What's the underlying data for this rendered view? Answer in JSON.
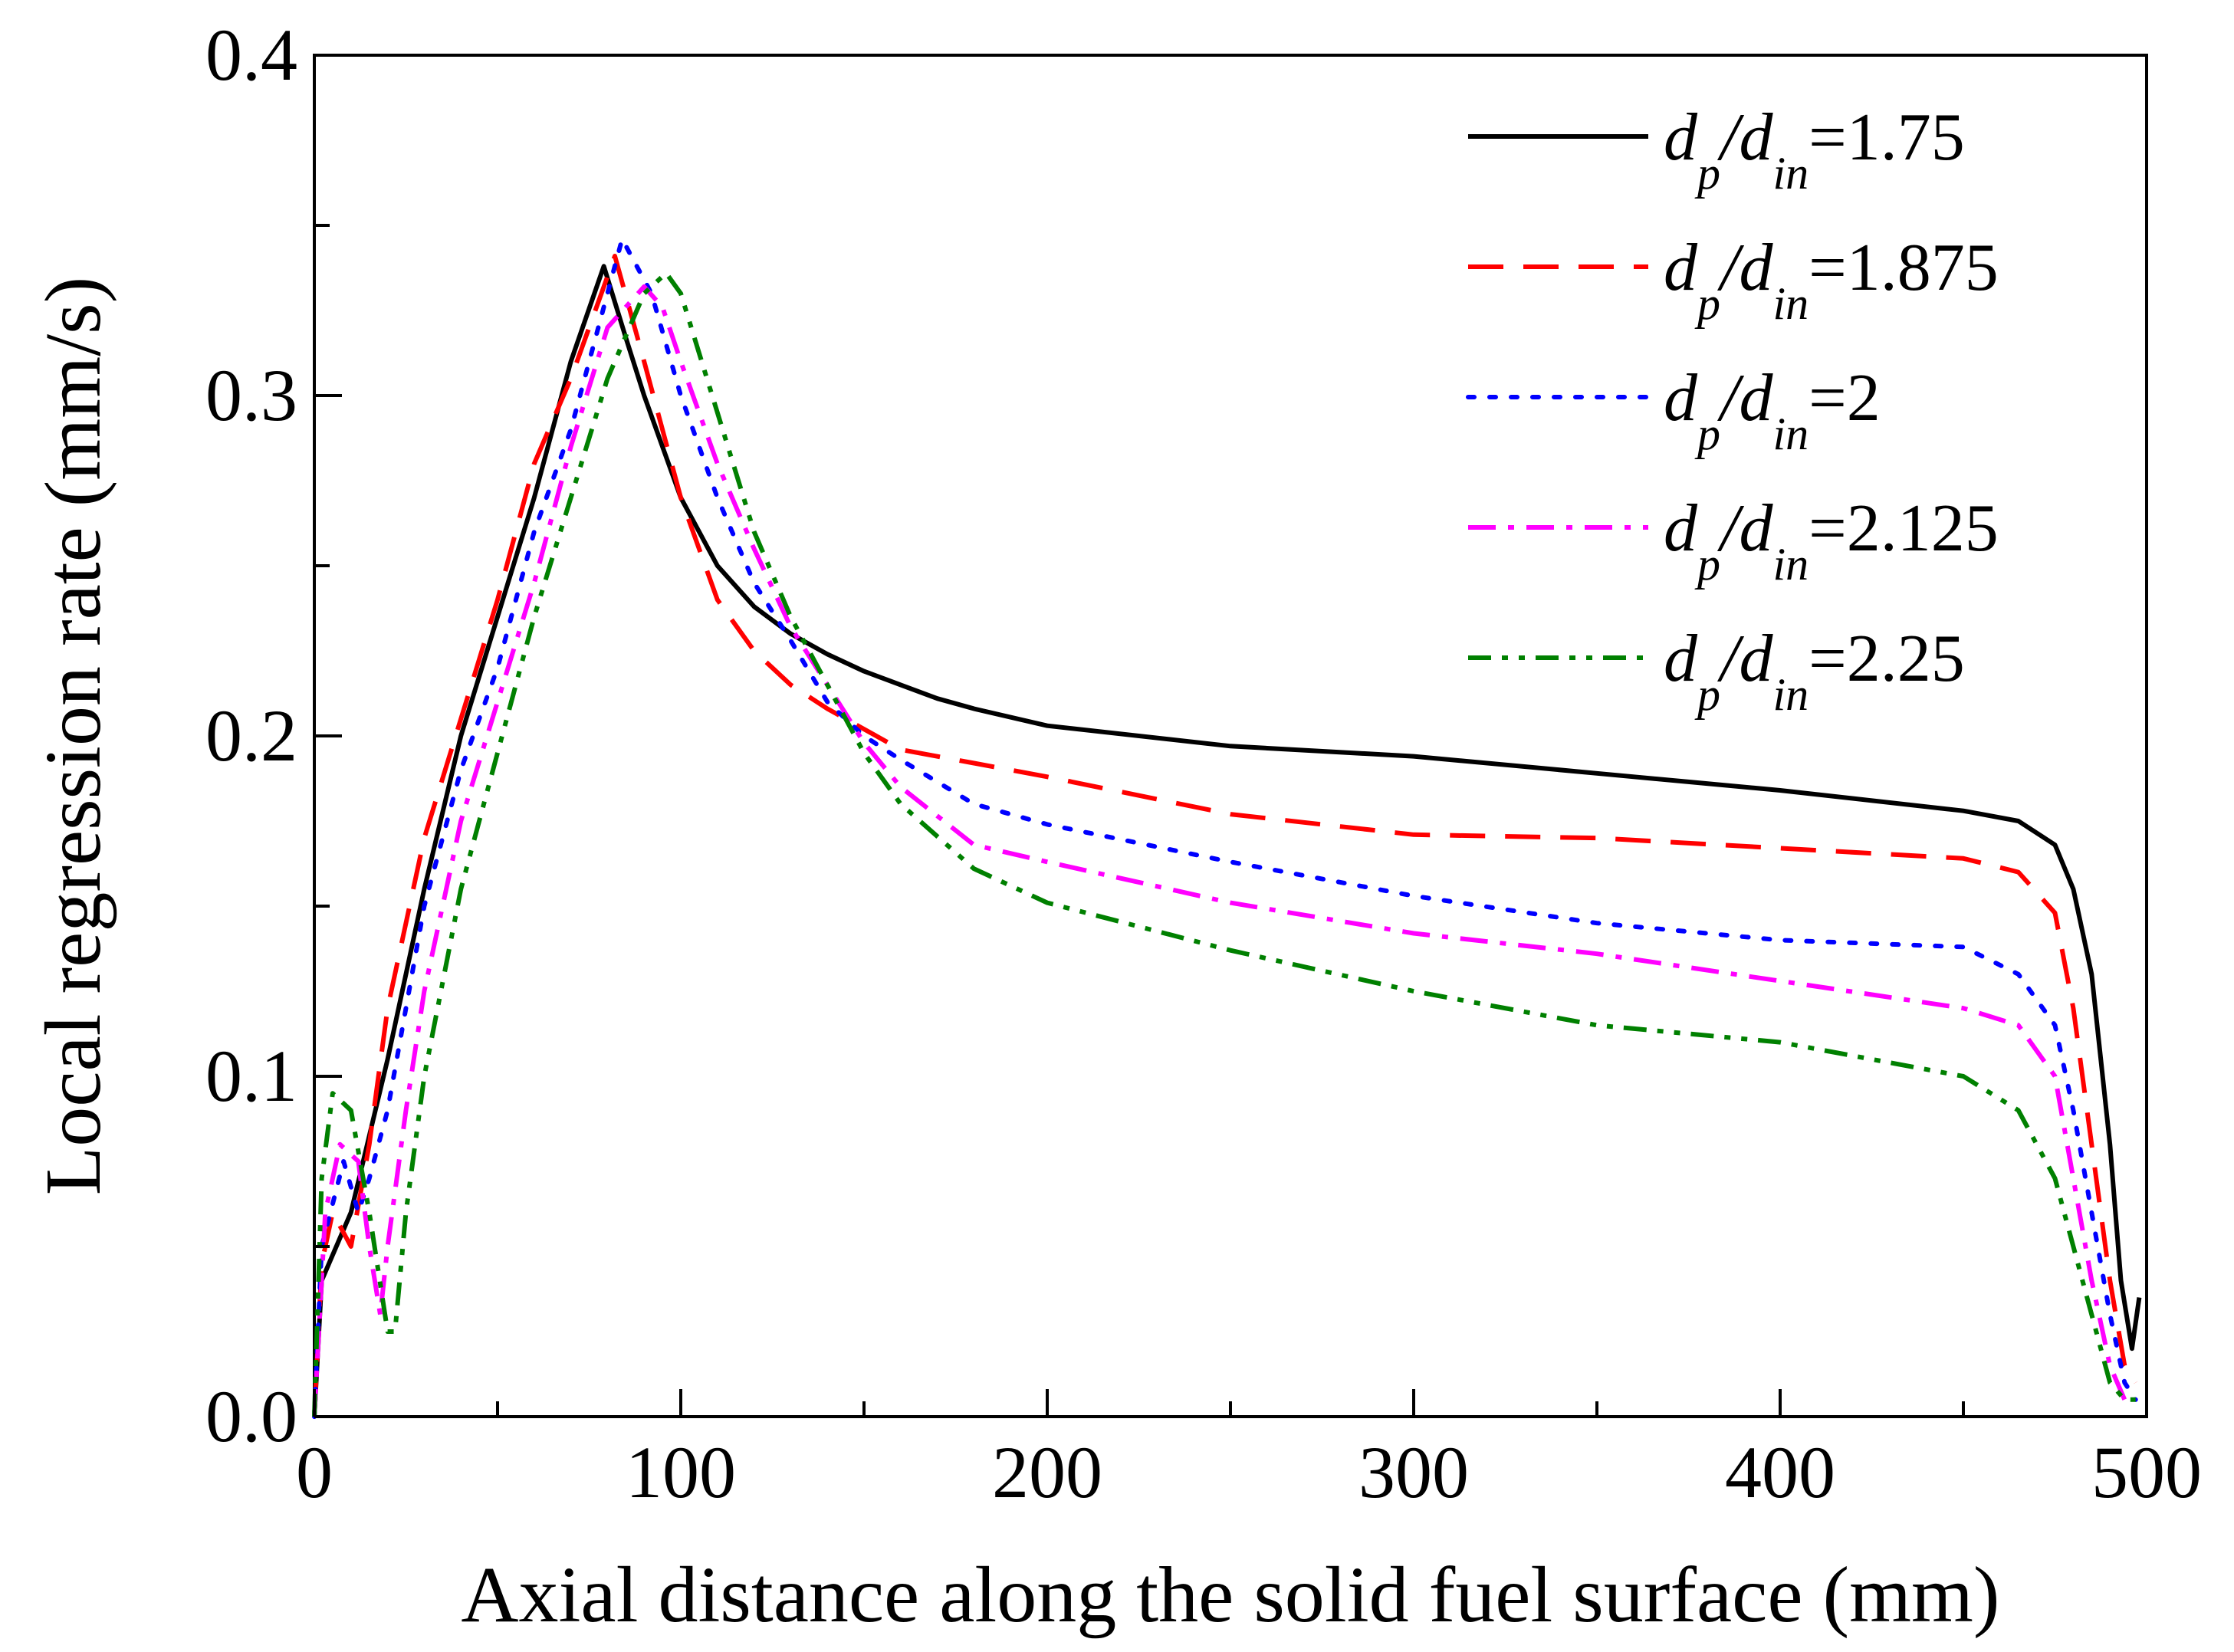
{
  "chart_data": {
    "type": "line",
    "title": "",
    "xlabel": "Axial distance along the solid fuel surface (mm)",
    "ylabel": "Local regression rate (mm/s)",
    "xlim": [
      0,
      500
    ],
    "ylim": [
      0,
      0.4
    ],
    "xticks": [
      0,
      100,
      200,
      300,
      400,
      500
    ],
    "yticks": [
      0.0,
      0.1,
      0.2,
      0.3,
      0.4
    ],
    "xtick_labels": [
      "0",
      "100",
      "200",
      "300",
      "400",
      "500"
    ],
    "ytick_labels": [
      "0.0",
      "0.1",
      "0.2",
      "0.3",
      "0.4"
    ],
    "legend_position": "top-right",
    "series": [
      {
        "name": "d_p/d_in=1.75",
        "label_prefix": "d",
        "label_sub1": "p",
        "label_mid": "/d",
        "label_sub2": "in",
        "label_value": "=1.75",
        "color": "#000000",
        "dash": "solid",
        "x": [
          0,
          2,
          10,
          20,
          30,
          40,
          50,
          60,
          70,
          79,
          85,
          90,
          100,
          110,
          120,
          130,
          140,
          150,
          160,
          170,
          180,
          200,
          250,
          300,
          350,
          400,
          450,
          465,
          475,
          480,
          485,
          490,
          493,
          496,
          498
        ],
        "y": [
          0.0,
          0.04,
          0.06,
          0.105,
          0.155,
          0.2,
          0.235,
          0.27,
          0.31,
          0.338,
          0.317,
          0.3,
          0.27,
          0.25,
          0.238,
          0.23,
          0.224,
          0.219,
          0.215,
          0.211,
          0.208,
          0.203,
          0.197,
          0.194,
          0.189,
          0.184,
          0.178,
          0.175,
          0.168,
          0.155,
          0.13,
          0.08,
          0.04,
          0.02,
          0.035
        ]
      },
      {
        "name": "d_p/d_in=1.875",
        "label_prefix": "d",
        "label_sub1": "p",
        "label_mid": "/d",
        "label_sub2": "in",
        "label_value": "=1.875",
        "color": "#ff0000",
        "dash": "long-dash",
        "x": [
          0,
          2,
          5,
          10,
          15,
          20,
          30,
          40,
          50,
          60,
          70,
          82,
          90,
          100,
          110,
          120,
          130,
          140,
          150,
          160,
          180,
          200,
          250,
          300,
          350,
          400,
          450,
          465,
          475,
          480,
          485,
          490,
          494,
          497
        ],
        "y": [
          0.0,
          0.045,
          0.06,
          0.05,
          0.08,
          0.12,
          0.17,
          0.205,
          0.24,
          0.28,
          0.305,
          0.341,
          0.31,
          0.27,
          0.24,
          0.225,
          0.215,
          0.208,
          0.202,
          0.196,
          0.192,
          0.188,
          0.177,
          0.171,
          0.17,
          0.167,
          0.164,
          0.16,
          0.148,
          0.12,
          0.08,
          0.04,
          0.015,
          0.01
        ]
      },
      {
        "name": "d_p/d_in=2",
        "label_prefix": "d",
        "label_sub1": "p",
        "label_mid": "/d",
        "label_sub2": "in",
        "label_value": "=2",
        "color": "#0000ff",
        "dash": "dot",
        "x": [
          0,
          2,
          8,
          12,
          15,
          20,
          30,
          40,
          50,
          60,
          70,
          84,
          92,
          100,
          110,
          120,
          130,
          140,
          150,
          160,
          180,
          200,
          250,
          300,
          350,
          400,
          450,
          465,
          475,
          480,
          485,
          490,
          494,
          497
        ],
        "y": [
          0.0,
          0.05,
          0.075,
          0.06,
          0.07,
          0.09,
          0.15,
          0.19,
          0.22,
          0.26,
          0.29,
          0.346,
          0.33,
          0.3,
          0.27,
          0.245,
          0.228,
          0.21,
          0.2,
          0.193,
          0.18,
          0.174,
          0.163,
          0.153,
          0.145,
          0.14,
          0.138,
          0.13,
          0.115,
          0.09,
          0.06,
          0.03,
          0.01,
          0.005
        ]
      },
      {
        "name": "d_p/d_in=2.125",
        "label_prefix": "d",
        "label_sub1": "p",
        "label_mid": "/d",
        "label_sub2": "in",
        "label_value": "=2.125",
        "color": "#ff00ff",
        "dash": "dash-dot",
        "x": [
          0,
          3,
          7,
          12,
          15,
          18,
          20,
          25,
          30,
          40,
          50,
          60,
          70,
          80,
          90,
          95,
          100,
          110,
          120,
          130,
          140,
          150,
          160,
          180,
          200,
          250,
          300,
          350,
          400,
          450,
          465,
          475,
          480,
          485,
          490,
          494,
          497
        ],
        "y": [
          0.0,
          0.06,
          0.08,
          0.075,
          0.05,
          0.03,
          0.05,
          0.09,
          0.125,
          0.175,
          0.21,
          0.245,
          0.285,
          0.32,
          0.332,
          0.326,
          0.31,
          0.28,
          0.255,
          0.232,
          0.215,
          0.198,
          0.185,
          0.168,
          0.163,
          0.151,
          0.142,
          0.136,
          0.128,
          0.12,
          0.115,
          0.1,
          0.07,
          0.04,
          0.015,
          0.005,
          0.005
        ]
      },
      {
        "name": "d_p/d_in=2.25",
        "label_prefix": "d",
        "label_sub1": "p",
        "label_mid": "/d",
        "label_sub2": "in",
        "label_value": "=2.25",
        "color": "#008000",
        "dash": "dash-dot-dot",
        "x": [
          0,
          2,
          5,
          10,
          15,
          20,
          22,
          25,
          30,
          40,
          50,
          60,
          70,
          80,
          90,
          96,
          100,
          110,
          120,
          130,
          140,
          150,
          160,
          180,
          200,
          250,
          300,
          350,
          400,
          450,
          465,
          475,
          480,
          485,
          490,
          494,
          497
        ],
        "y": [
          0.0,
          0.07,
          0.095,
          0.09,
          0.06,
          0.025,
          0.025,
          0.06,
          0.1,
          0.155,
          0.195,
          0.235,
          0.27,
          0.305,
          0.33,
          0.336,
          0.33,
          0.295,
          0.26,
          0.235,
          0.215,
          0.195,
          0.18,
          0.161,
          0.151,
          0.137,
          0.125,
          0.115,
          0.11,
          0.1,
          0.09,
          0.07,
          0.05,
          0.03,
          0.01,
          0.005,
          0.005
        ]
      }
    ]
  }
}
